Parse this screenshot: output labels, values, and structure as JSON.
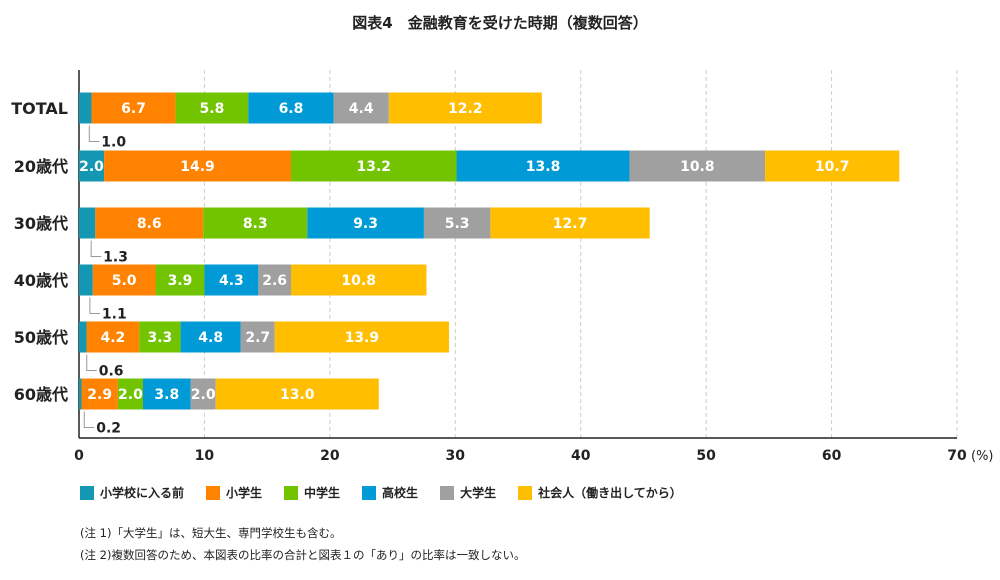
{
  "chart_data": {
    "type": "bar",
    "orientation": "horizontal",
    "stacked": true,
    "title": "図表4　金融教育を受けた時期（複数回答）",
    "categories": [
      "TOTAL",
      "20歳代",
      "30歳代",
      "40歳代",
      "50歳代",
      "60歳代"
    ],
    "series": [
      {
        "name": "小学校に入る前",
        "color": "#1497B2",
        "values": [
          1.0,
          2.0,
          1.3,
          1.1,
          0.6,
          0.2
        ]
      },
      {
        "name": "小学生",
        "color": "#FF8200",
        "values": [
          6.7,
          14.9,
          8.6,
          5.0,
          4.2,
          2.9
        ]
      },
      {
        "name": "中学生",
        "color": "#72C300",
        "values": [
          5.8,
          13.2,
          8.3,
          3.9,
          3.3,
          2.0
        ]
      },
      {
        "name": "高校生",
        "color": "#009BD6",
        "values": [
          6.8,
          13.8,
          9.3,
          4.3,
          4.8,
          3.8
        ]
      },
      {
        "name": "大学生",
        "color": "#A0A0A0",
        "values": [
          4.4,
          10.8,
          5.3,
          2.6,
          2.7,
          2.0
        ]
      },
      {
        "name": "社会人（働き出してから）",
        "color": "#FFBE00",
        "values": [
          12.2,
          10.7,
          12.7,
          10.8,
          13.9,
          13.0
        ]
      }
    ],
    "xlim": [
      0,
      70
    ],
    "xticks": [
      "0",
      "10",
      "20",
      "30",
      "40",
      "50",
      "60",
      "70"
    ],
    "xunit": "(%)",
    "grid": true,
    "legend": "bottom"
  },
  "notes": [
    "(注 1)「大学生」は、短大生、専門学校生も含む。",
    "(注 2)複数回答のため、本図表の比率の合計と図表１の「あり」の比率は一致しない。"
  ]
}
